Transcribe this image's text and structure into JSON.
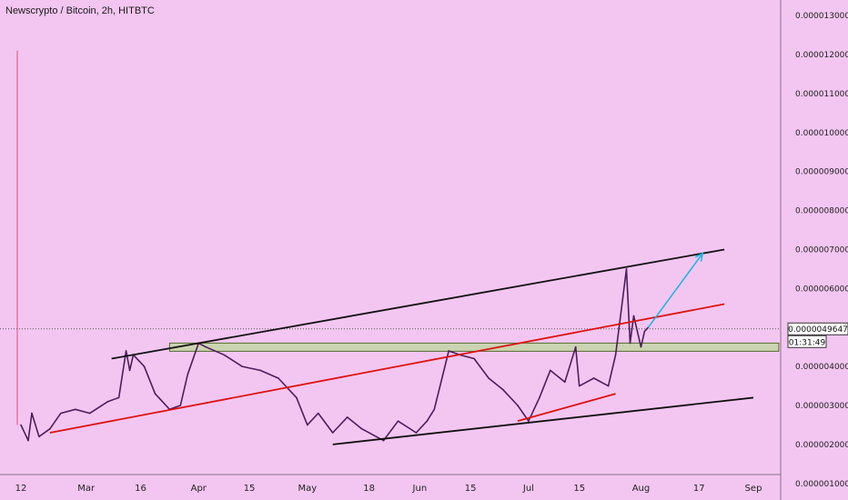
{
  "header": {
    "title": "Newscrypto / Bitcoin, 2h, HITBTC"
  },
  "colors": {
    "background": "#f3c6f1",
    "price_line": "#4b1e5c",
    "upper_channel": "#111111",
    "lower_channel": "#111111",
    "mid_trendline": "#dd1111",
    "target_arrow": "#18b5e6",
    "zone_fill": "#c3d6a6",
    "zone_stroke": "#556b2f",
    "price_badge_bg": "#ffffff",
    "countdown_badge_bg": "#ffffff"
  },
  "chart_data": {
    "type": "line",
    "x_axis": {
      "tick_labels": [
        "12",
        "Mar",
        "16",
        "Apr",
        "15",
        "May",
        "18",
        "Jun",
        "15",
        "Jul",
        "15",
        "Aug",
        "17",
        "Sep"
      ],
      "tick_dates": [
        "2020-02-12",
        "2020-03-01",
        "2020-03-16",
        "2020-04-01",
        "2020-04-15",
        "2020-05-01",
        "2020-05-18",
        "2020-06-01",
        "2020-06-15",
        "2020-07-01",
        "2020-07-15",
        "2020-08-01",
        "2020-08-17",
        "2020-09-01"
      ]
    },
    "y_axis": {
      "position": "right",
      "range": [
        5.75e-07,
        1.34e-05
      ],
      "tick_labels": [
        "0.0000130000",
        "0.0000120000",
        "0.0000110000",
        "0.0000100000",
        "0.0000090000",
        "0.0000080000",
        "0.0000070000",
        "0.0000060000",
        "0.0000040000",
        "0.0000030000",
        "0.0000020000",
        "0.0000010000"
      ],
      "tick_values": [
        1.3e-05,
        1.2e-05,
        1.1e-05,
        1e-05,
        9e-06,
        8e-06,
        7e-06,
        6e-06,
        4e-06,
        3e-06,
        2e-06,
        1e-06
      ]
    },
    "series": [
      {
        "points": [
          [
            "2020-02-12",
            2.5e-06
          ],
          [
            "2020-02-14",
            2.1e-06
          ],
          [
            "2020-02-15",
            2.8e-06
          ],
          [
            "2020-02-17",
            2.2e-06
          ],
          [
            "2020-02-20",
            2.4e-06
          ],
          [
            "2020-02-23",
            2.8e-06
          ],
          [
            "2020-02-27",
            2.9e-06
          ],
          [
            "2020-03-02",
            2.8e-06
          ],
          [
            "2020-03-07",
            3.1e-06
          ],
          [
            "2020-03-10",
            3.2e-06
          ],
          [
            "2020-03-12",
            4.4e-06
          ],
          [
            "2020-03-13",
            3.9e-06
          ],
          [
            "2020-03-14",
            4.3e-06
          ],
          [
            "2020-03-17",
            4e-06
          ],
          [
            "2020-03-20",
            3.3e-06
          ],
          [
            "2020-03-24",
            2.9e-06
          ],
          [
            "2020-03-27",
            3e-06
          ],
          [
            "2020-03-29",
            3.8e-06
          ],
          [
            "2020-04-01",
            4.6e-06
          ],
          [
            "2020-04-03",
            4.5e-06
          ],
          [
            "2020-04-08",
            4.3e-06
          ],
          [
            "2020-04-13",
            4e-06
          ],
          [
            "2020-04-18",
            3.9e-06
          ],
          [
            "2020-04-23",
            3.7e-06
          ],
          [
            "2020-04-28",
            3.2e-06
          ],
          [
            "2020-05-01",
            2.5e-06
          ],
          [
            "2020-05-04",
            2.8e-06
          ],
          [
            "2020-05-08",
            2.3e-06
          ],
          [
            "2020-05-12",
            2.7e-06
          ],
          [
            "2020-05-16",
            2.4e-06
          ],
          [
            "2020-05-22",
            2.1e-06
          ],
          [
            "2020-05-26",
            2.6e-06
          ],
          [
            "2020-05-31",
            2.3e-06
          ],
          [
            "2020-06-03",
            2.6e-06
          ],
          [
            "2020-06-05",
            2.9e-06
          ],
          [
            "2020-06-09",
            4.4e-06
          ],
          [
            "2020-06-12",
            4.3e-06
          ],
          [
            "2020-06-16",
            4.2e-06
          ],
          [
            "2020-06-20",
            3.7e-06
          ],
          [
            "2020-06-24",
            3.4e-06
          ],
          [
            "2020-06-28",
            3e-06
          ],
          [
            "2020-07-01",
            2.6e-06
          ],
          [
            "2020-07-04",
            3.2e-06
          ],
          [
            "2020-07-07",
            3.9e-06
          ],
          [
            "2020-07-11",
            3.6e-06
          ],
          [
            "2020-07-14",
            4.5e-06
          ],
          [
            "2020-07-15",
            3.5e-06
          ],
          [
            "2020-07-19",
            3.7e-06
          ],
          [
            "2020-07-23",
            3.5e-06
          ],
          [
            "2020-07-25",
            4.3e-06
          ],
          [
            "2020-07-28",
            6.5e-06
          ],
          [
            "2020-07-29",
            4.6e-06
          ],
          [
            "2020-07-30",
            5.3e-06
          ],
          [
            "2020-08-01",
            4.5e-06
          ],
          [
            "2020-08-02",
            4.9e-06
          ],
          [
            "2020-08-03",
            5e-06
          ]
        ]
      }
    ],
    "annotations": {
      "upper_channel": [
        [
          "2020-03-08",
          4.2e-06
        ],
        [
          "2020-08-24",
          7e-06
        ]
      ],
      "lower_channel": [
        [
          "2020-05-08",
          2e-06
        ],
        [
          "2020-09-01",
          3.2e-06
        ]
      ],
      "mid_trendline": [
        [
          "2020-02-20",
          2.3e-06
        ],
        [
          "2020-08-24",
          5.6e-06
        ]
      ],
      "short_red_trendline": [
        [
          "2020-06-28",
          2.6e-06
        ],
        [
          "2020-07-25",
          3.3e-06
        ]
      ],
      "target_arrow": [
        [
          "2020-08-03",
          5e-06
        ],
        [
          "2020-08-18",
          6.9e-06
        ]
      ],
      "horizontal_zone": {
        "from": "2020-03-24",
        "to": "2020-09-08",
        "low": 4.39e-06,
        "high": 4.6e-06
      },
      "vertical_marker": {
        "date": "2020-02-11",
        "from": 2.5e-06,
        "to": 1.21e-05
      }
    },
    "current_price": {
      "value": 4.964e-06,
      "label": "0.0000049647",
      "countdown": "01:31:49"
    }
  }
}
